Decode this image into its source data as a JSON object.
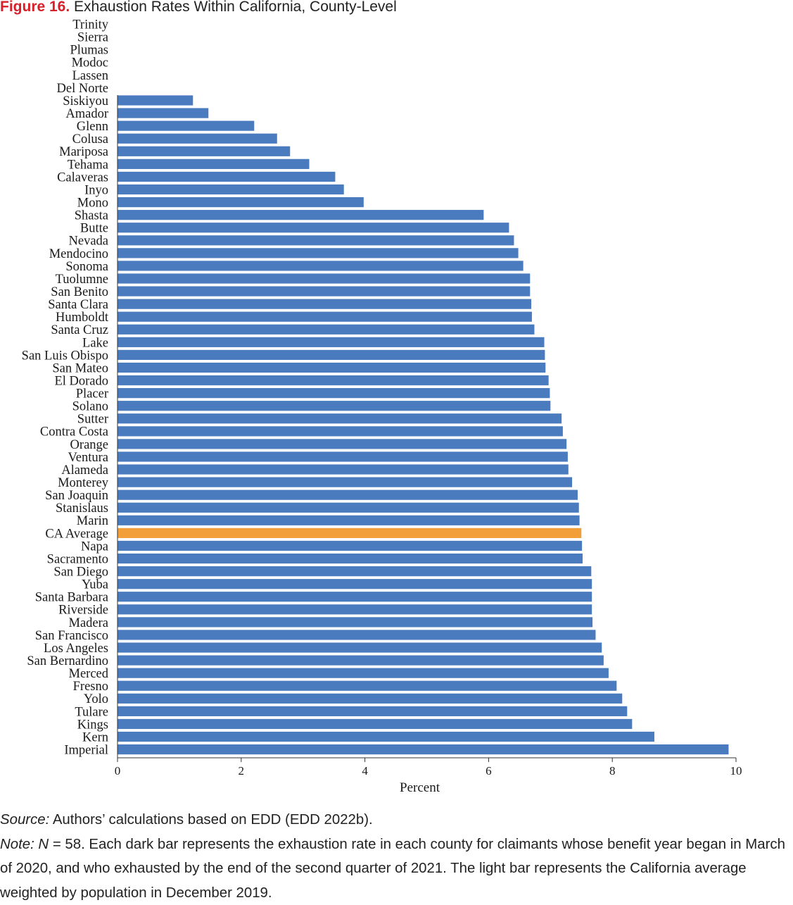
{
  "figure": {
    "label": "Figure 16.",
    "title": "Exhaustion Rates Within California, County-Level"
  },
  "chart_data": {
    "type": "bar",
    "orientation": "horizontal",
    "categories": [
      "Trinity",
      "Sierra",
      "Plumas",
      "Modoc",
      "Lassen",
      "Del Norte",
      "Siskiyou",
      "Amador",
      "Glenn",
      "Colusa",
      "Mariposa",
      "Tehama",
      "Calaveras",
      "Inyo",
      "Mono",
      "Shasta",
      "Butte",
      "Nevada",
      "Mendocino",
      "Sonoma",
      "Tuolumne",
      "San Benito",
      "Santa Clara",
      "Humboldt",
      "Santa Cruz",
      "Lake",
      "San Luis Obispo",
      "San Mateo",
      "El Dorado",
      "Placer",
      "Solano",
      "Sutter",
      "Contra Costa",
      "Orange",
      "Ventura",
      "Alameda",
      "Monterey",
      "San Joaquin",
      "Stanislaus",
      "Marin",
      "CA Average",
      "Napa",
      "Sacramento",
      "San Diego",
      "Yuba",
      "Santa Barbara",
      "Riverside",
      "Madera",
      "San Francisco",
      "Los  Angeles",
      "San Bernardino",
      "Merced",
      "Fresno",
      "Yolo",
      "Tulare",
      "Kings",
      "Kern",
      "Imperial"
    ],
    "values": [
      0,
      0,
      0,
      0,
      0,
      0,
      1.22,
      1.47,
      2.21,
      2.58,
      2.79,
      3.1,
      3.52,
      3.66,
      3.98,
      5.92,
      6.33,
      6.41,
      6.48,
      6.56,
      6.67,
      6.67,
      6.69,
      6.7,
      6.74,
      6.9,
      6.91,
      6.92,
      6.97,
      6.99,
      7.0,
      7.18,
      7.2,
      7.26,
      7.28,
      7.29,
      7.35,
      7.44,
      7.46,
      7.47,
      7.5,
      7.51,
      7.52,
      7.66,
      7.67,
      7.67,
      7.67,
      7.68,
      7.73,
      7.83,
      7.86,
      7.94,
      8.07,
      8.16,
      8.24,
      8.32,
      8.68,
      9.88
    ],
    "highlight_category": "CA Average",
    "colors": {
      "bar": "#4a7bbf",
      "highlight": "#f29f3a"
    },
    "xlabel": "Percent",
    "xlim": [
      0,
      10
    ],
    "xticks": [
      0,
      2,
      4,
      6,
      8,
      10
    ],
    "grid": false,
    "legend": "none"
  },
  "notes": {
    "source_lead": "Source:",
    "source_text": "Authors’ calculations based on EDD (EDD 2022b).",
    "note_lead": "Note:",
    "note_n": "N",
    "note_text": " = 58. Each dark bar represents the exhaustion rate in each county for claimants whose benefit year began in March of 2020, and who exhausted by the end of the second quarter of 2021. The light bar represents the California average weighted by population in December 2019."
  }
}
